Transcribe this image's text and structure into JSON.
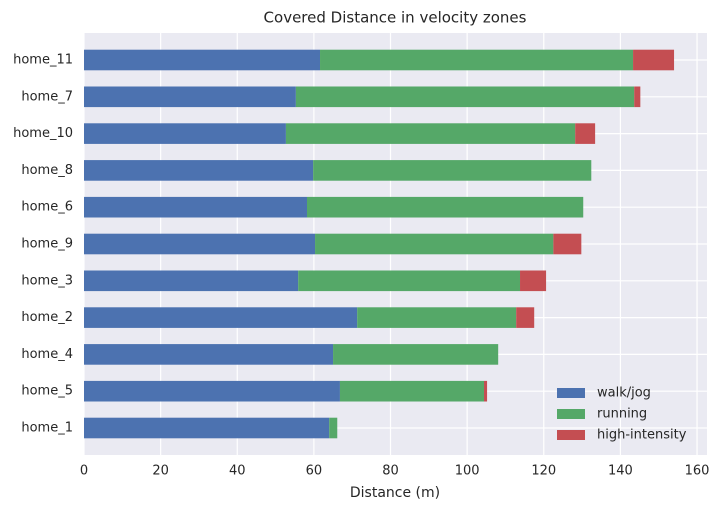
{
  "chart_data": {
    "type": "stacked_barh",
    "title": "Covered Distance in velocity zones",
    "x_label": "Distance (m)",
    "categories": [
      "home_11",
      "home_7",
      "home_10",
      "home_8",
      "home_6",
      "home_9",
      "home_3",
      "home_2",
      "home_4",
      "home_5",
      "home_1"
    ],
    "series": [
      {
        "name": "walk/jog",
        "color": "#4c72b0",
        "values": [
          61.6,
          55.3,
          52.7,
          59.8,
          58.2,
          60.3,
          55.9,
          71.3,
          65.0,
          66.8,
          64.0
        ]
      },
      {
        "name": "running",
        "color": "#55a868",
        "values": [
          81.7,
          88.3,
          75.5,
          72.6,
          72.1,
          62.2,
          57.9,
          41.5,
          43.1,
          37.6,
          2.1
        ]
      },
      {
        "name": "high-intensity",
        "color": "#c44e52",
        "values": [
          10.7,
          1.6,
          5.2,
          0,
          0,
          7.3,
          6.8,
          4.7,
          0,
          0.8,
          0
        ]
      }
    ],
    "xlim": [
      0,
      162.6
    ],
    "xticks": [
      0,
      20,
      40,
      60,
      80,
      100,
      120,
      140,
      160
    ],
    "grid": true,
    "legend": "lower right"
  }
}
